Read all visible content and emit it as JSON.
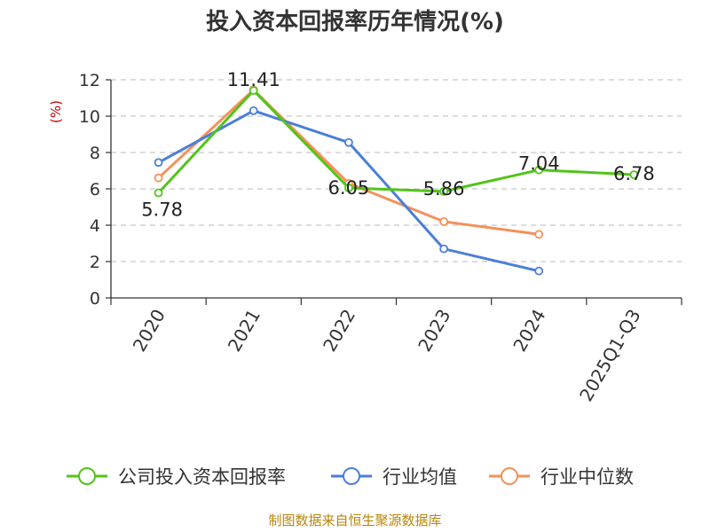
{
  "chart_data": {
    "type": "line",
    "title": "投入资本回报率历年情况(%)",
    "ylabel": "(%)",
    "xlabel": "",
    "categories": [
      "2020",
      "2021",
      "2022",
      "2023",
      "2024",
      "2025Q1-Q3"
    ],
    "ylim": [
      0,
      12
    ],
    "yticks": [
      0,
      2,
      4,
      6,
      8,
      10,
      12
    ],
    "grid": true,
    "legend_position": "bottom",
    "series": [
      {
        "name": "公司投入资本回报率",
        "color": "#52c41a",
        "values": [
          5.78,
          11.41,
          6.05,
          5.86,
          7.04,
          6.78
        ],
        "labels": [
          "5.78",
          "11.41",
          "6.05",
          "5.86",
          "7.04",
          "6.78"
        ]
      },
      {
        "name": "行业均值",
        "color": "#4a7fd9",
        "values": [
          7.45,
          10.3,
          8.55,
          2.7,
          1.48,
          null
        ]
      },
      {
        "name": "行业中位数",
        "color": "#f4915a",
        "values": [
          6.6,
          11.45,
          6.3,
          4.2,
          3.5,
          null
        ]
      }
    ],
    "source": "制图数据来自恒生聚源数据库"
  }
}
